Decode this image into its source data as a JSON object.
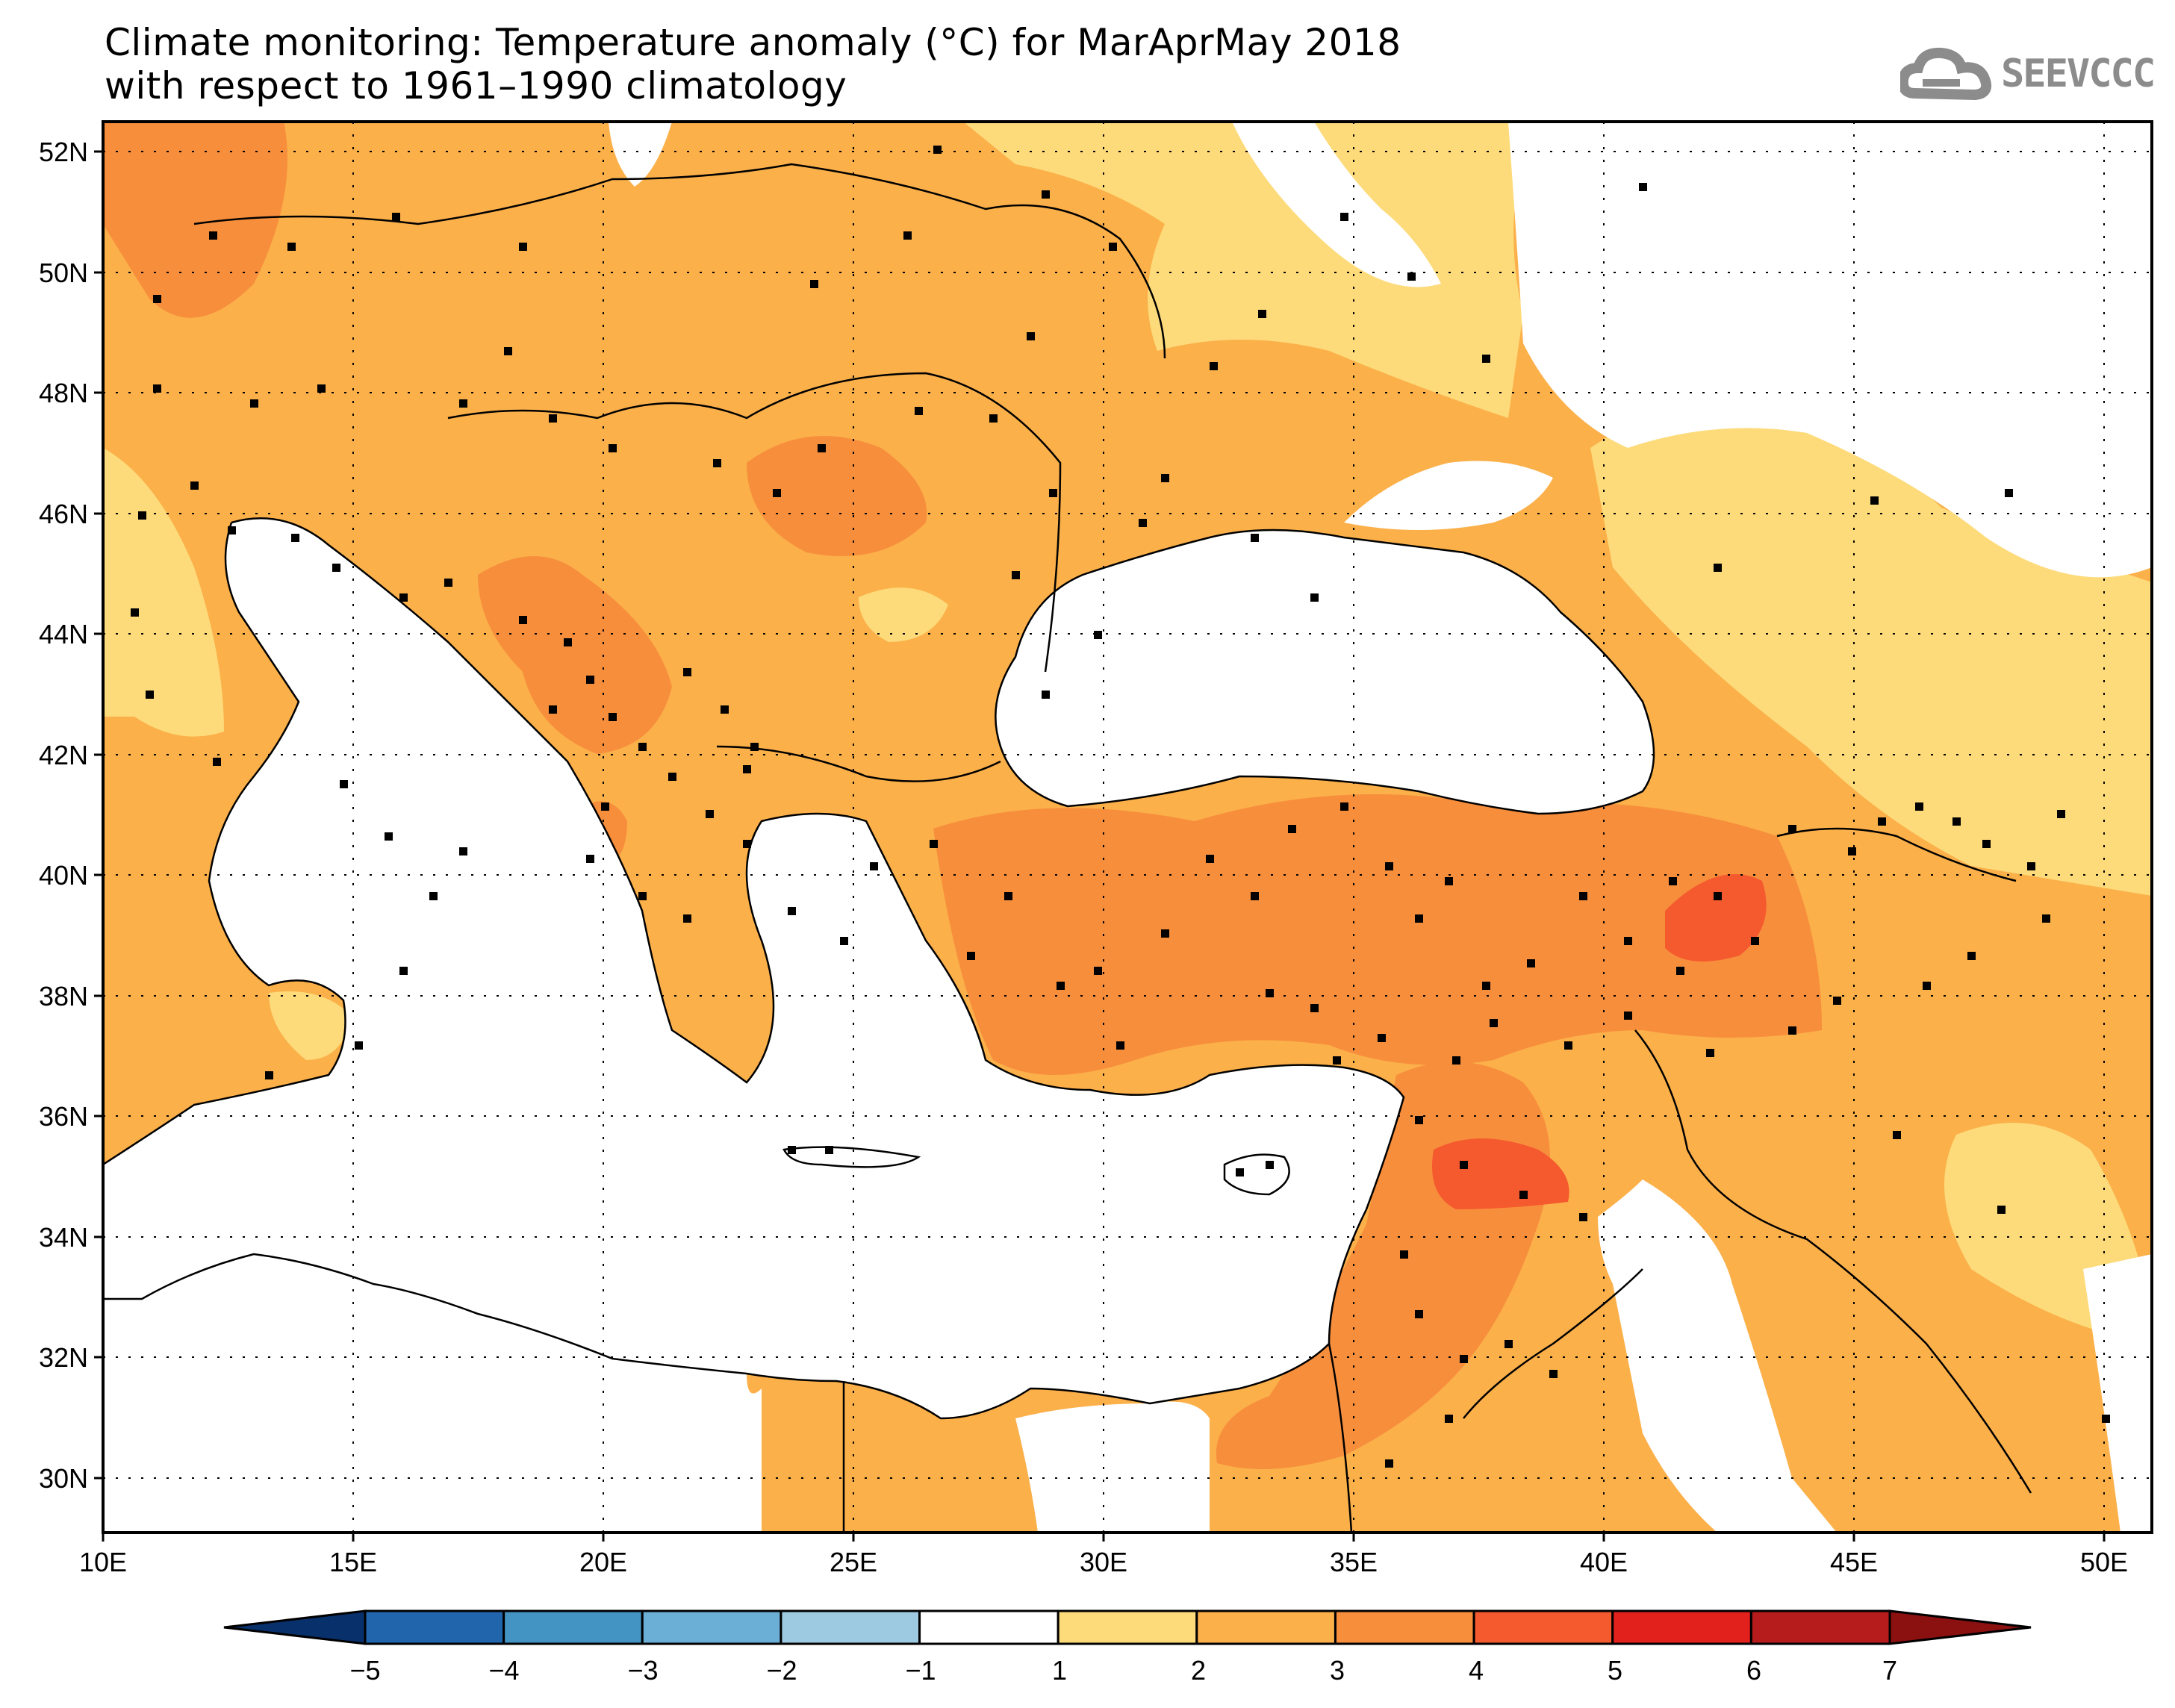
{
  "title": {
    "line1": "Climate monitoring: Temperature anomaly (°C) for MarAprMay 2018",
    "line2": "with respect to 1961–1990 climatology"
  },
  "logo": {
    "text": "SEEVCCC",
    "icon": "cloud-icon",
    "color": "#8c8c8c"
  },
  "map": {
    "lat_labels": [
      "52N",
      "50N",
      "48N",
      "46N",
      "44N",
      "42N",
      "40N",
      "38N",
      "36N",
      "34N",
      "32N",
      "30N"
    ],
    "lon_labels": [
      "10E",
      "15E",
      "20E",
      "25E",
      "30E",
      "35E",
      "40E",
      "45E",
      "50E"
    ],
    "lon_range": [
      10,
      51
    ],
    "lat_range": [
      29,
      52.4
    ],
    "grid": "dotted"
  },
  "colorbar": {
    "ticks": [
      "−5",
      "−4",
      "−3",
      "−2",
      "−1",
      "1",
      "2",
      "3",
      "4",
      "5",
      "6",
      "7"
    ],
    "colors": [
      "#08306b",
      "#2166ac",
      "#4393c3",
      "#6baed6",
      "#9ecae1",
      "#ffffff",
      "#fddb7a",
      "#fbb04a",
      "#f78e3c",
      "#f55a2e",
      "#e2201c",
      "#b71c1c",
      "#8b1010"
    ]
  }
}
